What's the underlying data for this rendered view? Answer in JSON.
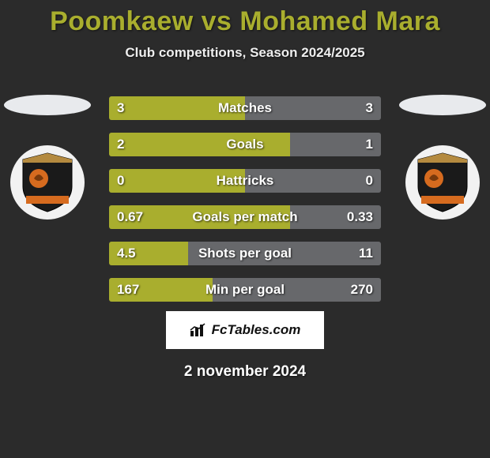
{
  "title": {
    "text": "Poomkaew vs Mohamed Mara",
    "color": "#a9ae2e",
    "fontsize": 34
  },
  "subtitle": {
    "text": "Club competitions, Season 2024/2025",
    "color": "#eeeeee",
    "fontsize": 17
  },
  "background_color": "#2b2b2b",
  "colors": {
    "left_bar": "#a9ae2e",
    "right_bar": "#67686b",
    "badge_bg": "#f2f2f2",
    "shield_fill": "#1a1a1a",
    "shield_accent": "#d66b1f"
  },
  "stats": [
    {
      "label": "Matches",
      "left_val": "3",
      "right_val": "3",
      "left_pct": 50,
      "right_pct": 50
    },
    {
      "label": "Goals",
      "left_val": "2",
      "right_val": "1",
      "left_pct": 66.7,
      "right_pct": 33.3
    },
    {
      "label": "Hattricks",
      "left_val": "0",
      "right_val": "0",
      "left_pct": 50,
      "right_pct": 50
    },
    {
      "label": "Goals per match",
      "left_val": "0.67",
      "right_val": "0.33",
      "left_pct": 66.7,
      "right_pct": 33.3
    },
    {
      "label": "Shots per goal",
      "left_val": "4.5",
      "right_val": "11",
      "left_pct": 29,
      "right_pct": 71
    },
    {
      "label": "Min per goal",
      "left_val": "167",
      "right_val": "270",
      "left_pct": 38.2,
      "right_pct": 61.8
    }
  ],
  "bar_style": {
    "height": 30,
    "gap": 16,
    "label_fontsize": 17,
    "value_fontsize": 17,
    "border_radius": 3
  },
  "footer": {
    "brand": "FcTables.com",
    "brand_color": "#111111",
    "brand_fontsize": 17,
    "box_bg": "#ffffff"
  },
  "date": {
    "text": "2 november 2024",
    "fontsize": 19
  }
}
